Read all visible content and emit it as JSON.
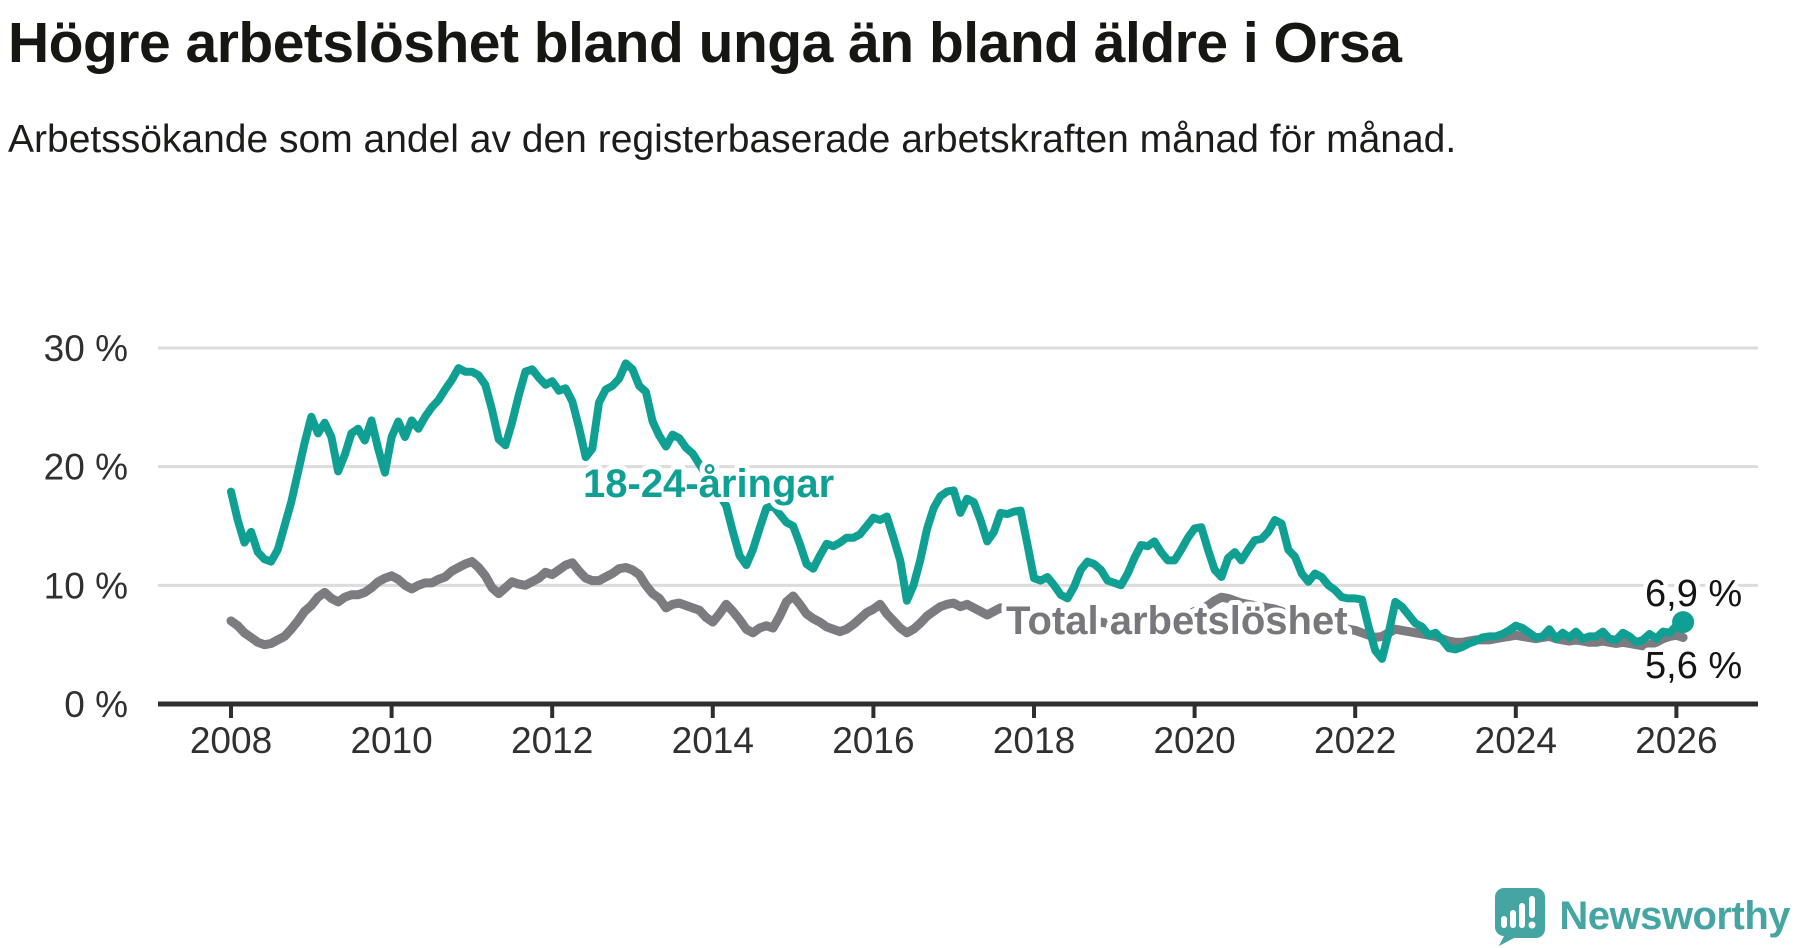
{
  "title": "Högre arbetslöshet bland unga än bland äldre i Orsa",
  "subtitle": "Arbetssökande som andel av den registerbaserade arbetskraften månad för månad.",
  "colors": {
    "youth_line": "#0fa093",
    "total_line": "#7b7b80",
    "total_label": "#77777c",
    "end_label_text": "#141414",
    "gridline": "#dcdcdc",
    "axis": "#2e2e2e",
    "logo_teal": "#45a5a2"
  },
  "series_labels": {
    "youth": "18-24-åringar",
    "total": "Total arbetslöshet"
  },
  "end_labels": {
    "youth": "6,9 %",
    "total": "5,6 %"
  },
  "logo": {
    "text": "Newsworthy",
    "icon": "speech-bubble-bar-chart-exclamation"
  },
  "y_axis": {
    "values": [
      30,
      20,
      10,
      0
    ],
    "labels": [
      "30 %",
      "20 %",
      "10 %",
      "0 %"
    ]
  },
  "x_axis": {
    "values": [
      2008,
      2010,
      2012,
      2014,
      2016,
      2018,
      2020,
      2022,
      2024,
      2026
    ],
    "labels": [
      "2008",
      "2010",
      "2012",
      "2014",
      "2016",
      "2018",
      "2020",
      "2022",
      "2024",
      "2026"
    ]
  },
  "chart_data": {
    "type": "line",
    "title": "Högre arbetslöshet bland unga än bland äldre i Orsa",
    "subtitle": "Arbetssökande som andel av den registerbaserade arbetskraften månad för månad.",
    "x_start_year": 2008,
    "x_step_months": 1,
    "x_end_label": "2026-02",
    "ylim": [
      0,
      30
    ],
    "grid": "horizontal",
    "legend_position": "inline-labels",
    "series": [
      {
        "name": "18-24-åringar",
        "color": "#0fa093",
        "last_value_label": "6,9 %",
        "values": [
          17.9,
          15.5,
          13.6,
          14.5,
          12.8,
          12.2,
          12.0,
          13.0,
          15.0,
          17.0,
          19.5,
          22.0,
          24.2,
          22.8,
          23.7,
          22.5,
          19.6,
          21.0,
          22.8,
          23.2,
          22.2,
          23.9,
          21.5,
          19.5,
          22.5,
          23.8,
          22.5,
          23.9,
          23.2,
          24.2,
          25.0,
          25.6,
          26.5,
          27.3,
          28.3,
          28.0,
          28.0,
          27.7,
          26.9,
          24.8,
          22.3,
          21.8,
          23.7,
          26.0,
          28.0,
          28.2,
          27.5,
          26.9,
          27.2,
          26.4,
          26.6,
          25.5,
          23.3,
          20.8,
          21.5,
          25.4,
          26.5,
          26.8,
          27.4,
          28.7,
          28.2,
          26.8,
          26.3,
          23.8,
          22.6,
          21.7,
          22.7,
          22.4,
          21.6,
          21.1,
          20.2,
          19.3,
          18.4,
          17.6,
          16.7,
          14.5,
          12.5,
          11.7,
          13.0,
          14.8,
          16.5,
          16.7,
          16.0,
          15.3,
          15.0,
          13.5,
          11.8,
          11.4,
          12.5,
          13.5,
          13.3,
          13.6,
          14.0,
          14.0,
          14.3,
          15.0,
          15.7,
          15.5,
          15.8,
          14.0,
          12.1,
          8.7,
          10.0,
          12.1,
          14.7,
          16.5,
          17.5,
          17.9,
          18.0,
          16.1,
          17.3,
          17.0,
          15.5,
          13.7,
          14.5,
          16.1,
          16.0,
          16.2,
          16.3,
          13.5,
          10.6,
          10.4,
          10.7,
          10.0,
          9.2,
          8.9,
          9.9,
          11.3,
          12.0,
          11.8,
          11.3,
          10.4,
          10.2,
          10.0,
          11.0,
          12.3,
          13.4,
          13.3,
          13.7,
          12.8,
          12.1,
          12.1,
          13.0,
          14.0,
          14.8,
          14.9,
          13.0,
          11.3,
          10.7,
          12.3,
          12.8,
          12.1,
          13.0,
          13.8,
          13.9,
          14.5,
          15.5,
          15.2,
          13.0,
          12.4,
          11.0,
          10.3,
          11.0,
          10.7,
          10.0,
          9.6,
          9.0,
          8.9,
          8.9,
          8.8,
          6.5,
          4.5,
          3.8,
          6.0,
          8.6,
          8.2,
          7.5,
          6.8,
          6.5,
          5.8,
          6.0,
          5.4,
          4.7,
          4.6,
          4.8,
          5.1,
          5.3,
          5.6,
          5.7,
          5.7,
          5.9,
          6.2,
          6.6,
          6.4,
          6.0,
          5.6,
          5.7,
          6.3,
          5.5,
          6.0,
          5.6,
          6.1,
          5.5,
          5.7,
          5.7,
          6.1,
          5.5,
          5.4,
          6.0,
          5.7,
          5.2,
          5.4,
          5.9,
          5.5,
          6.1,
          6.0,
          6.6,
          6.9
        ]
      },
      {
        "name": "Total arbetslöshet",
        "color": "#7b7b80",
        "last_value_label": "5,6 %",
        "values": [
          7.0,
          6.6,
          6.0,
          5.6,
          5.2,
          5.0,
          5.1,
          5.4,
          5.7,
          6.3,
          7.0,
          7.8,
          8.3,
          9.0,
          9.4,
          8.9,
          8.6,
          9.0,
          9.2,
          9.2,
          9.4,
          9.8,
          10.3,
          10.6,
          10.8,
          10.5,
          10.0,
          9.7,
          10.0,
          10.2,
          10.2,
          10.5,
          10.7,
          11.2,
          11.5,
          11.8,
          12.0,
          11.5,
          10.8,
          9.8,
          9.3,
          9.8,
          10.3,
          10.1,
          10.0,
          10.3,
          10.6,
          11.1,
          10.9,
          11.3,
          11.7,
          11.9,
          11.2,
          10.6,
          10.4,
          10.4,
          10.7,
          11.0,
          11.4,
          11.5,
          11.3,
          10.9,
          10.0,
          9.3,
          8.9,
          8.1,
          8.4,
          8.5,
          8.3,
          8.1,
          7.9,
          7.3,
          6.9,
          7.6,
          8.4,
          7.8,
          7.1,
          6.3,
          6.0,
          6.4,
          6.6,
          6.4,
          7.4,
          8.6,
          9.1,
          8.4,
          7.6,
          7.2,
          6.9,
          6.5,
          6.3,
          6.1,
          6.3,
          6.7,
          7.2,
          7.7,
          8.0,
          8.4,
          7.6,
          7.0,
          6.4,
          6.0,
          6.3,
          6.8,
          7.4,
          7.8,
          8.2,
          8.4,
          8.5,
          8.2,
          8.4,
          8.1,
          7.8,
          7.5,
          7.8,
          8.1,
          7.9,
          7.7,
          7.5,
          7.4,
          7.3,
          7.0,
          6.8,
          6.6,
          6.5,
          6.6,
          6.8,
          7.0,
          7.1,
          7.0,
          6.9,
          6.8,
          6.7,
          6.6,
          6.5,
          6.5,
          6.6,
          6.8,
          7.0,
          7.1,
          7.1,
          7.2,
          7.3,
          7.5,
          7.8,
          8.0,
          8.3,
          8.7,
          9.0,
          8.9,
          8.7,
          8.5,
          8.4,
          8.3,
          8.2,
          8.1,
          8.0,
          7.8,
          7.5,
          7.3,
          7.1,
          7.0,
          6.9,
          6.8,
          6.6,
          6.5,
          6.4,
          6.3,
          6.2,
          6.0,
          5.8,
          5.6,
          5.7,
          6.0,
          6.3,
          6.2,
          6.1,
          6.0,
          5.9,
          5.8,
          5.7,
          5.5,
          5.3,
          5.2,
          5.2,
          5.3,
          5.4,
          5.4,
          5.4,
          5.5,
          5.6,
          5.7,
          5.8,
          5.7,
          5.6,
          5.5,
          5.6,
          5.7,
          5.5,
          5.4,
          5.3,
          5.4,
          5.3,
          5.2,
          5.2,
          5.3,
          5.2,
          5.1,
          5.2,
          5.1,
          5.0,
          4.9,
          5.0,
          5.2,
          5.5,
          5.7,
          5.8,
          5.6
        ]
      }
    ]
  }
}
